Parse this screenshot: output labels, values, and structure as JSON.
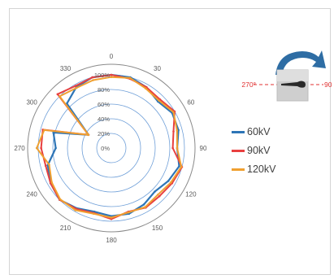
{
  "chart_data": {
    "type": "radar",
    "angular_labels": [
      "0",
      "30",
      "60",
      "90",
      "120",
      "150",
      "180",
      "210",
      "240",
      "270",
      "300",
      "330"
    ],
    "radial_labels": [
      "0%",
      "20%",
      "40%",
      "60%",
      "80%",
      "100%"
    ],
    "rlim": [
      0,
      100
    ],
    "angle_step_deg": 15,
    "grid": true,
    "legend_position": "right",
    "series": [
      {
        "name": "60kV",
        "color": "#2E75B6",
        "values": [
          100,
          100,
          96,
          90,
          96,
          95,
          90,
          96,
          90,
          84,
          89,
          93,
          93,
          90,
          95,
          100,
          96,
          90,
          76,
          82,
          36,
          86,
          96,
          100
        ]
      },
      {
        "name": "90kV",
        "color": "#E84040",
        "values": [
          100,
          98,
          96,
          94,
          100,
          88,
          84,
          100,
          96,
          93,
          94,
          90,
          97,
          92,
          96,
          100,
          96,
          93,
          96,
          97,
          36,
          104,
          98,
          100
        ]
      },
      {
        "name": "120kV",
        "color": "#F0A030",
        "values": [
          97,
          99,
          94,
          92,
          98,
          93,
          90,
          99,
          94,
          90,
          93,
          91,
          95,
          93,
          98,
          99,
          94,
          88,
          102,
          95,
          36,
          100,
          95,
          96
        ]
      }
    ]
  },
  "inset": {
    "label_left": "270°",
    "label_right": "90",
    "arrow_color": "#2E6DA4",
    "dash_color": "#E03030"
  },
  "legend": [
    {
      "label": "60kV",
      "color": "#2E75B6"
    },
    {
      "label": "90kV",
      "color": "#E84040"
    },
    {
      "label": "120kV",
      "color": "#F0A030"
    }
  ]
}
